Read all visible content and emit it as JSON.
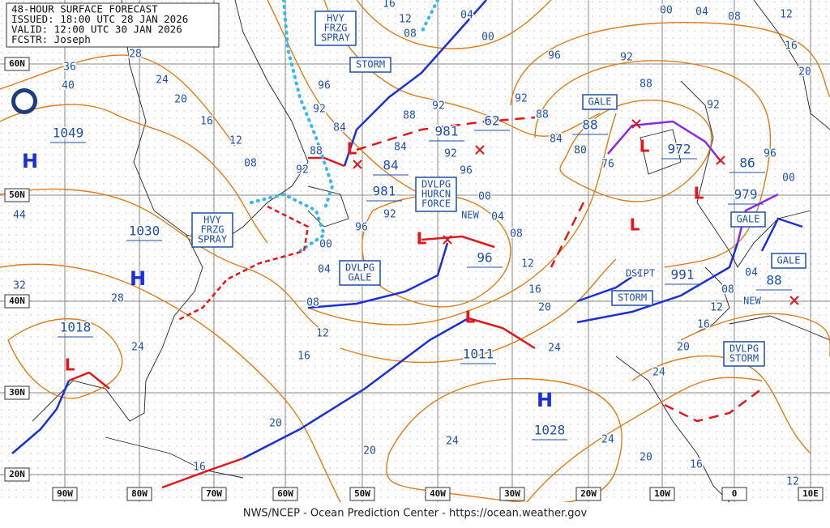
{
  "header": {
    "lines": [
      "48-HOUR SURFACE FORECAST",
      "ISSUED: 18:00 UTC 28 JAN 2026",
      "VALID: 12:00 UTC 30 JAN 2026",
      "FCSTR: Joseph"
    ]
  },
  "footer": "NWS/NCEP - Ocean Prediction Center - https://ocean.weather.gov",
  "lat_labels": [
    "60N",
    "50N",
    "40N",
    "30N",
    "20N"
  ],
  "lon_labels": [
    "90W",
    "80W",
    "70W",
    "60W",
    "50W",
    "40W",
    "30W",
    "20W",
    "10W",
    "0",
    "10E"
  ],
  "symbols": [
    "H",
    "H",
    "L",
    "H",
    "L",
    "L",
    "L",
    "L",
    "L",
    "L"
  ],
  "pressures": [
    "1049",
    "1030",
    "1018",
    "1028",
    "1011",
    "96",
    "981",
    "981",
    "84",
    "62",
    "88",
    "972",
    "86",
    "979",
    "991",
    "88"
  ],
  "boxes": [
    [
      "HVY",
      "FRZG",
      "SPRAY"
    ],
    [
      "STORM"
    ],
    [
      "GALE"
    ],
    [
      "DVLPG",
      "HURCN",
      "FORCE"
    ],
    [
      "HVY",
      "FRZG",
      "SPRAY"
    ],
    [
      "DVLPG",
      "GALE"
    ],
    [
      "STORM"
    ],
    [
      "GALE"
    ],
    [
      "GALE"
    ],
    [
      "DVLPG",
      "STORM"
    ]
  ],
  "notes": [
    "NEW",
    "DSIPT",
    "NEW"
  ],
  "isobar_labels": [
    "36",
    "28",
    "40",
    "24",
    "20",
    "16",
    "12",
    "08",
    "44",
    "32",
    "28",
    "24",
    "20",
    "16",
    "12",
    "08",
    "04",
    "00",
    "96",
    "92",
    "96",
    "92",
    "88",
    "84",
    "92",
    "88",
    "84",
    "92",
    "92",
    "96",
    "00",
    "04",
    "08",
    "12",
    "16",
    "20",
    "24",
    "24",
    "20",
    "16",
    "00",
    "04",
    "08",
    "12",
    "16",
    "96",
    "92",
    "88",
    "84",
    "80",
    "76",
    "92",
    "88",
    "00",
    "04",
    "08",
    "12",
    "16",
    "20",
    "96",
    "00",
    "92",
    "04",
    "08",
    "12",
    "16",
    "20",
    "24",
    "24",
    "20",
    "16",
    "12"
  ]
}
